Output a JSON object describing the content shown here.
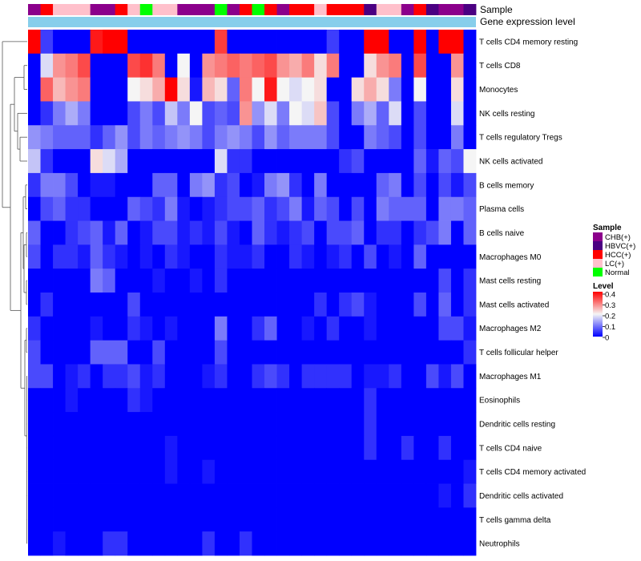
{
  "chart_data": {
    "type": "heatmap",
    "title": "",
    "annotation_titles": [
      "Sample",
      "Gene expression level"
    ],
    "sample_colors": {
      "CHB(+)": "#8B008B",
      "HBVC(+)": "#4B0082",
      "HCC(+)": "#FF0000",
      "LC(+)": "#FFC0CB",
      "Normal": "#00FF00"
    },
    "sample_groups": [
      "CHB(+)",
      "HCC(+)",
      "LC(+)",
      "LC(+)",
      "LC(+)",
      "CHB(+)",
      "CHB(+)",
      "HCC(+)",
      "LC(+)",
      "Normal",
      "LC(+)",
      "LC(+)",
      "CHB(+)",
      "CHB(+)",
      "CHB(+)",
      "Normal",
      "CHB(+)",
      "HCC(+)",
      "Normal",
      "HCC(+)",
      "CHB(+)",
      "HCC(+)",
      "HCC(+)",
      "LC(+)",
      "HCC(+)",
      "HCC(+)",
      "HCC(+)",
      "HBVC(+)",
      "LC(+)",
      "LC(+)",
      "CHB(+)",
      "HCC(+)",
      "HBVC(+)",
      "CHB(+)",
      "CHB(+)",
      "HBVC(+)"
    ],
    "expression_level_color": "#87CEEB",
    "rows": [
      "T cells CD4 memory resting",
      "T cells CD8",
      "Monocytes",
      "NK cells resting",
      "T cells regulatory  Tregs",
      "NK cells activated",
      "B cells memory",
      "Plasma cells",
      "B cells naive",
      "Macrophages M0",
      "Mast cells resting",
      "Mast cells activated",
      "Macrophages M2",
      "T cells follicular helper",
      "Macrophages M1",
      "Eosinophils",
      "Dendritic cells resting",
      "T cells CD4 naive",
      "T cells CD4 memory activated",
      "Dendritic cells activated",
      "T cells gamma delta",
      "Neutrophils"
    ],
    "values": [
      [
        0.4,
        0.05,
        0.0,
        0.0,
        0.0,
        0.38,
        0.4,
        0.4,
        0.0,
        0.0,
        0.0,
        0.0,
        0.0,
        0.0,
        0.0,
        0.35,
        0.0,
        0.0,
        0.0,
        0.0,
        0.0,
        0.0,
        0.0,
        0.0,
        0.05,
        0.0,
        0.0,
        0.4,
        0.4,
        0.0,
        0.0,
        0.4,
        0.0,
        0.4,
        0.4,
        0.0
      ],
      [
        0.0,
        0.18,
        0.28,
        0.3,
        0.34,
        0.0,
        0.0,
        0.0,
        0.34,
        0.36,
        0.3,
        0.0,
        0.2,
        0.0,
        0.28,
        0.3,
        0.32,
        0.3,
        0.32,
        0.34,
        0.28,
        0.26,
        0.3,
        0.22,
        0.3,
        0.0,
        0.0,
        0.22,
        0.28,
        0.3,
        0.0,
        0.34,
        0.0,
        0.0,
        0.28,
        0.0
      ],
      [
        0.0,
        0.32,
        0.25,
        0.28,
        0.3,
        0.0,
        0.0,
        0.0,
        0.2,
        0.22,
        0.26,
        0.4,
        0.22,
        0.02,
        0.25,
        0.22,
        0.08,
        0.3,
        0.2,
        0.38,
        0.2,
        0.18,
        0.2,
        0.22,
        0.0,
        0.0,
        0.22,
        0.26,
        0.22,
        0.1,
        0.0,
        0.2,
        0.0,
        0.0,
        0.22,
        0.0
      ],
      [
        0.0,
        0.04,
        0.1,
        0.14,
        0.1,
        0.0,
        0.0,
        0.0,
        0.06,
        0.1,
        0.06,
        0.16,
        0.1,
        0.2,
        0.06,
        0.08,
        0.06,
        0.28,
        0.12,
        0.18,
        0.1,
        0.2,
        0.18,
        0.24,
        0.06,
        0.0,
        0.1,
        0.14,
        0.08,
        0.18,
        0.0,
        0.06,
        0.0,
        0.0,
        0.18,
        0.0
      ],
      [
        0.12,
        0.1,
        0.08,
        0.08,
        0.08,
        0.04,
        0.08,
        0.12,
        0.06,
        0.1,
        0.08,
        0.1,
        0.12,
        0.1,
        0.06,
        0.1,
        0.12,
        0.1,
        0.06,
        0.12,
        0.08,
        0.1,
        0.1,
        0.1,
        0.06,
        0.0,
        0.0,
        0.1,
        0.08,
        0.06,
        0.0,
        0.06,
        0.0,
        0.0,
        0.1,
        0.0
      ],
      [
        0.16,
        0.04,
        0.0,
        0.0,
        0.0,
        0.22,
        0.18,
        0.14,
        0.0,
        0.0,
        0.0,
        0.0,
        0.0,
        0.0,
        0.0,
        0.18,
        0.04,
        0.04,
        0.0,
        0.0,
        0.0,
        0.0,
        0.0,
        0.0,
        0.0,
        0.04,
        0.06,
        0.0,
        0.0,
        0.0,
        0.0,
        0.08,
        0.02,
        0.08,
        0.06,
        0.2
      ],
      [
        0.04,
        0.1,
        0.1,
        0.06,
        0.0,
        0.02,
        0.02,
        0.0,
        0.0,
        0.0,
        0.08,
        0.08,
        0.0,
        0.1,
        0.12,
        0.04,
        0.06,
        0.0,
        0.02,
        0.1,
        0.12,
        0.04,
        0.0,
        0.1,
        0.0,
        0.0,
        0.0,
        0.0,
        0.08,
        0.1,
        0.0,
        0.06,
        0.0,
        0.06,
        0.02,
        0.06
      ],
      [
        0.0,
        0.06,
        0.08,
        0.04,
        0.04,
        0.0,
        0.0,
        0.0,
        0.08,
        0.06,
        0.04,
        0.1,
        0.02,
        0.0,
        0.02,
        0.04,
        0.06,
        0.06,
        0.08,
        0.04,
        0.06,
        0.1,
        0.02,
        0.08,
        0.06,
        0.0,
        0.06,
        0.0,
        0.1,
        0.08,
        0.08,
        0.08,
        0.0,
        0.1,
        0.1,
        0.08
      ],
      [
        0.08,
        0.0,
        0.0,
        0.04,
        0.06,
        0.08,
        0.02,
        0.08,
        0.0,
        0.02,
        0.06,
        0.06,
        0.02,
        0.04,
        0.02,
        0.06,
        0.02,
        0.0,
        0.08,
        0.04,
        0.02,
        0.04,
        0.06,
        0.0,
        0.06,
        0.06,
        0.08,
        0.0,
        0.04,
        0.04,
        0.0,
        0.04,
        0.06,
        0.1,
        0.0,
        0.08
      ],
      [
        0.06,
        0.0,
        0.04,
        0.04,
        0.02,
        0.08,
        0.04,
        0.02,
        0.0,
        0.02,
        0.0,
        0.04,
        0.02,
        0.0,
        0.0,
        0.04,
        0.02,
        0.02,
        0.04,
        0.0,
        0.0,
        0.04,
        0.02,
        0.0,
        0.02,
        0.04,
        0.0,
        0.06,
        0.0,
        0.02,
        0.0,
        0.08,
        0.0,
        0.0,
        0.0,
        0.0
      ],
      [
        0.0,
        0.0,
        0.0,
        0.0,
        0.0,
        0.1,
        0.08,
        0.0,
        0.0,
        0.0,
        0.02,
        0.0,
        0.0,
        0.02,
        0.0,
        0.04,
        0.0,
        0.0,
        0.0,
        0.0,
        0.0,
        0.0,
        0.0,
        0.0,
        0.0,
        0.0,
        0.0,
        0.0,
        0.0,
        0.0,
        0.0,
        0.0,
        0.0,
        0.06,
        0.0,
        0.04
      ],
      [
        0.0,
        0.04,
        0.0,
        0.0,
        0.0,
        0.0,
        0.0,
        0.0,
        0.06,
        0.0,
        0.0,
        0.0,
        0.0,
        0.0,
        0.0,
        0.0,
        0.0,
        0.0,
        0.0,
        0.0,
        0.0,
        0.0,
        0.0,
        0.04,
        0.0,
        0.04,
        0.06,
        0.02,
        0.0,
        0.0,
        0.0,
        0.06,
        0.0,
        0.08,
        0.0,
        0.04
      ],
      [
        0.04,
        0.0,
        0.0,
        0.0,
        0.0,
        0.02,
        0.0,
        0.0,
        0.04,
        0.02,
        0.0,
        0.02,
        0.0,
        0.0,
        0.0,
        0.1,
        0.0,
        0.0,
        0.04,
        0.08,
        0.0,
        0.0,
        0.02,
        0.0,
        0.04,
        0.0,
        0.0,
        0.02,
        0.0,
        0.0,
        0.0,
        0.0,
        0.0,
        0.06,
        0.06,
        0.02
      ],
      [
        0.06,
        0.0,
        0.0,
        0.0,
        0.0,
        0.08,
        0.08,
        0.08,
        0.0,
        0.0,
        0.06,
        0.0,
        0.0,
        0.0,
        0.0,
        0.06,
        0.0,
        0.0,
        0.0,
        0.0,
        0.0,
        0.0,
        0.0,
        0.0,
        0.0,
        0.0,
        0.0,
        0.0,
        0.0,
        0.0,
        0.0,
        0.0,
        0.0,
        0.0,
        0.0,
        0.04
      ],
      [
        0.06,
        0.06,
        0.0,
        0.02,
        0.04,
        0.0,
        0.04,
        0.04,
        0.06,
        0.02,
        0.04,
        0.0,
        0.0,
        0.0,
        0.02,
        0.04,
        0.0,
        0.0,
        0.04,
        0.06,
        0.04,
        0.0,
        0.04,
        0.04,
        0.04,
        0.04,
        0.0,
        0.02,
        0.02,
        0.04,
        0.0,
        0.0,
        0.06,
        0.02,
        0.06,
        0.0
      ],
      [
        0.0,
        0.0,
        0.0,
        0.02,
        0.0,
        0.0,
        0.0,
        0.0,
        0.04,
        0.02,
        0.0,
        0.0,
        0.0,
        0.0,
        0.0,
        0.0,
        0.0,
        0.0,
        0.0,
        0.0,
        0.0,
        0.0,
        0.0,
        0.0,
        0.0,
        0.0,
        0.0,
        0.04,
        0.0,
        0.0,
        0.0,
        0.0,
        0.0,
        0.0,
        0.0,
        0.0
      ],
      [
        0.0,
        0.0,
        0.0,
        0.0,
        0.0,
        0.0,
        0.0,
        0.0,
        0.0,
        0.0,
        0.0,
        0.0,
        0.0,
        0.0,
        0.0,
        0.0,
        0.0,
        0.0,
        0.0,
        0.0,
        0.0,
        0.0,
        0.0,
        0.0,
        0.0,
        0.0,
        0.0,
        0.04,
        0.0,
        0.0,
        0.0,
        0.0,
        0.0,
        0.0,
        0.0,
        0.0
      ],
      [
        0.0,
        0.0,
        0.0,
        0.0,
        0.0,
        0.0,
        0.0,
        0.0,
        0.0,
        0.0,
        0.0,
        0.02,
        0.0,
        0.0,
        0.0,
        0.0,
        0.0,
        0.0,
        0.0,
        0.0,
        0.0,
        0.0,
        0.0,
        0.0,
        0.0,
        0.0,
        0.0,
        0.04,
        0.0,
        0.0,
        0.04,
        0.0,
        0.0,
        0.04,
        0.0,
        0.0
      ],
      [
        0.0,
        0.0,
        0.0,
        0.0,
        0.0,
        0.0,
        0.0,
        0.0,
        0.0,
        0.0,
        0.0,
        0.02,
        0.0,
        0.0,
        0.02,
        0.0,
        0.0,
        0.0,
        0.0,
        0.0,
        0.0,
        0.0,
        0.0,
        0.0,
        0.0,
        0.0,
        0.0,
        0.0,
        0.0,
        0.0,
        0.0,
        0.0,
        0.0,
        0.0,
        0.0,
        0.02
      ],
      [
        0.0,
        0.0,
        0.0,
        0.0,
        0.0,
        0.0,
        0.0,
        0.0,
        0.0,
        0.0,
        0.0,
        0.0,
        0.0,
        0.0,
        0.0,
        0.0,
        0.0,
        0.0,
        0.0,
        0.0,
        0.0,
        0.0,
        0.0,
        0.0,
        0.0,
        0.0,
        0.0,
        0.0,
        0.0,
        0.0,
        0.0,
        0.0,
        0.0,
        0.02,
        0.0,
        0.04
      ],
      [
        0.0,
        0.0,
        0.0,
        0.0,
        0.0,
        0.0,
        0.0,
        0.0,
        0.0,
        0.0,
        0.0,
        0.0,
        0.0,
        0.0,
        0.0,
        0.0,
        0.0,
        0.0,
        0.0,
        0.0,
        0.0,
        0.0,
        0.0,
        0.0,
        0.0,
        0.0,
        0.0,
        0.0,
        0.0,
        0.0,
        0.0,
        0.0,
        0.0,
        0.0,
        0.0,
        0.0
      ],
      [
        0.0,
        0.0,
        0.02,
        0.0,
        0.0,
        0.0,
        0.04,
        0.04,
        0.0,
        0.0,
        0.0,
        0.0,
        0.0,
        0.0,
        0.04,
        0.0,
        0.0,
        0.04,
        0.0,
        0.0,
        0.0,
        0.0,
        0.0,
        0.0,
        0.0,
        0.0,
        0.0,
        0.0,
        0.0,
        0.0,
        0.0,
        0.0,
        0.0,
        0.0,
        0.0,
        0.0
      ]
    ],
    "color_scale": {
      "min": 0,
      "max": 0.4,
      "low": "#0000FF",
      "mid": "#F5F5F5",
      "high": "#FF0000"
    },
    "legend": {
      "sample_title": "Sample",
      "sample_entries": [
        "CHB(+)",
        "HBVC(+)",
        "HCC(+)",
        "LC(+)",
        "Normal"
      ],
      "level_title": "Level",
      "level_ticks": [
        "0.4",
        "0.3",
        "0.2",
        "0.1",
        "0"
      ],
      "placement": "right"
    }
  }
}
